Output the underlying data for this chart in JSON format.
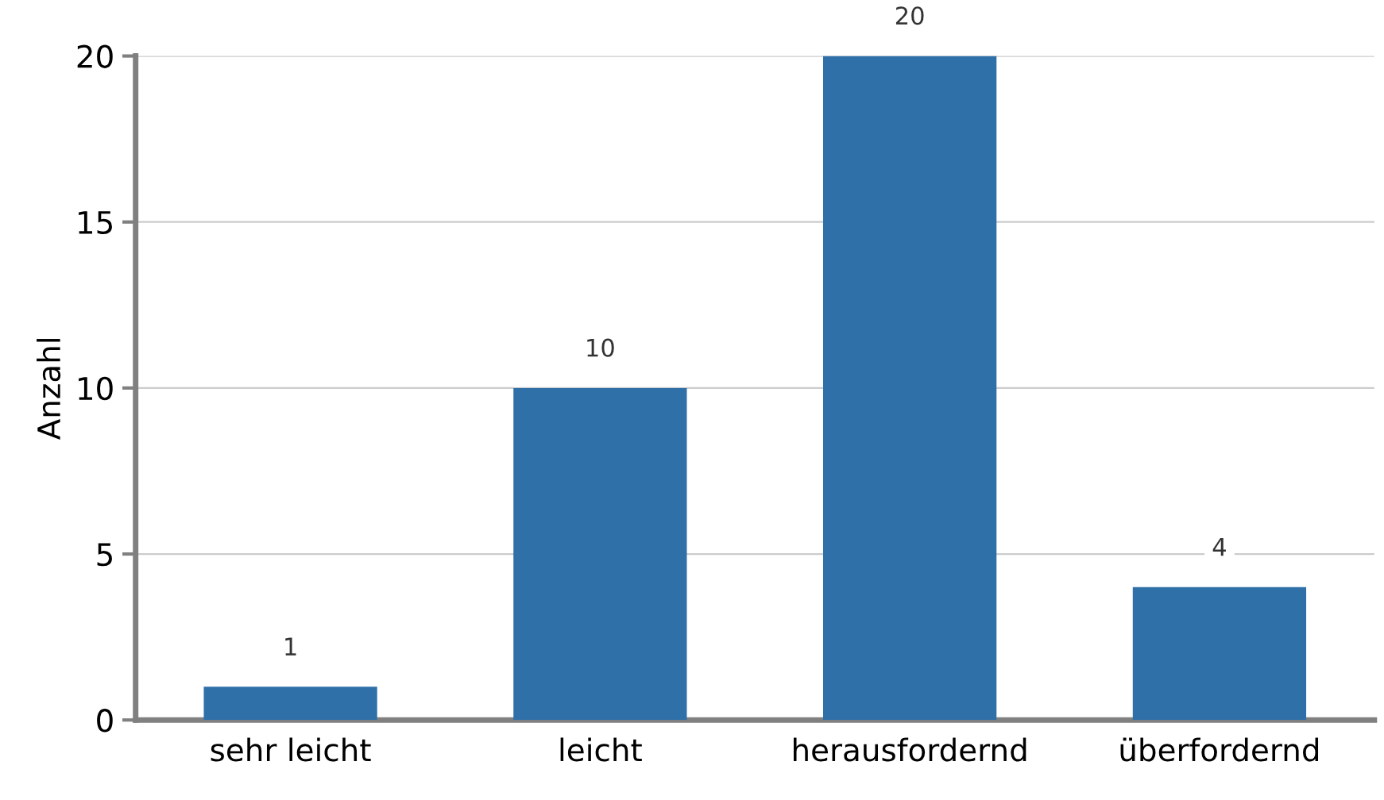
{
  "chart_data": {
    "type": "bar",
    "ylabel": "Anzahl",
    "categories": [
      "sehr leicht",
      "leicht",
      "herausfordernd",
      "überfordernd"
    ],
    "values": [
      1,
      10,
      20,
      4
    ],
    "color": "#3070a8",
    "ylim": [
      0,
      20
    ],
    "yticks": [
      0,
      5,
      10,
      15,
      20
    ],
    "grid": "y",
    "data_labels": true
  }
}
